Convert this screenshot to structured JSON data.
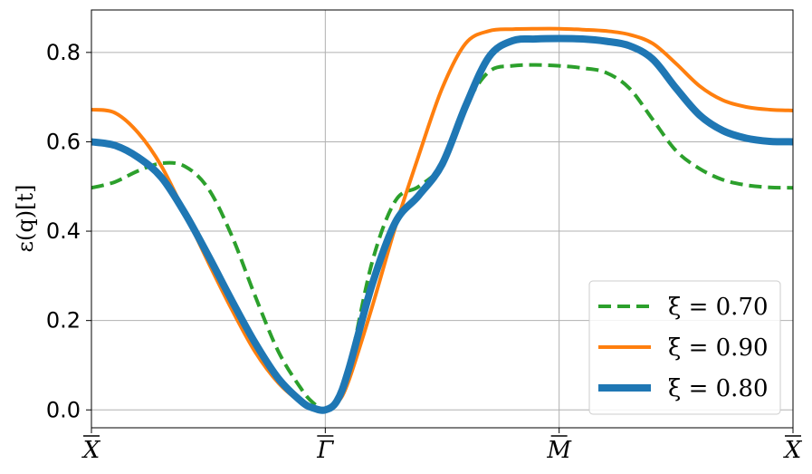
{
  "chart_data": {
    "type": "line",
    "ylabel": "ε(q)[t]",
    "ylim": [
      -0.04,
      0.895
    ],
    "yticks": [
      0.0,
      0.2,
      0.4,
      0.6,
      0.8
    ],
    "ytick_labels": [
      "0.0",
      "0.2",
      "0.4",
      "0.6",
      "0.8"
    ],
    "xlim": [
      0,
      3
    ],
    "xticks": [
      0,
      1,
      2,
      3
    ],
    "xtick_labels": [
      "X",
      "Γ",
      "M",
      "X"
    ],
    "grid": true,
    "legend_position": "lower-right",
    "series": [
      {
        "name": "ξ = 0.70",
        "color": "#2ca02c",
        "style": "dashed",
        "x": [
          0,
          0.1,
          0.2,
          0.3,
          0.4,
          0.5,
          0.6,
          0.7,
          0.8,
          0.9,
          0.95,
          1.0,
          1.05,
          1.1,
          1.2,
          1.3,
          1.4,
          1.5,
          1.6,
          1.7,
          1.8,
          1.9,
          2.0,
          2.1,
          2.2,
          2.3,
          2.4,
          2.5,
          2.6,
          2.7,
          2.8,
          2.9,
          3.0
        ],
        "y": [
          0.497,
          0.51,
          0.535,
          0.552,
          0.545,
          0.495,
          0.39,
          0.255,
          0.13,
          0.045,
          0.015,
          0.0,
          0.015,
          0.09,
          0.33,
          0.468,
          0.5,
          0.55,
          0.68,
          0.757,
          0.77,
          0.772,
          0.77,
          0.765,
          0.755,
          0.72,
          0.65,
          0.58,
          0.54,
          0.515,
          0.503,
          0.498,
          0.497
        ]
      },
      {
        "name": "ξ = 0.90",
        "color": "#ff7f0e",
        "style": "solid",
        "x": [
          0,
          0.1,
          0.2,
          0.3,
          0.4,
          0.5,
          0.6,
          0.7,
          0.8,
          0.9,
          0.95,
          1.0,
          1.05,
          1.1,
          1.2,
          1.3,
          1.4,
          1.5,
          1.6,
          1.7,
          1.8,
          1.9,
          2.0,
          2.1,
          2.2,
          2.3,
          2.4,
          2.5,
          2.6,
          2.7,
          2.8,
          2.9,
          3.0
        ],
        "y": [
          0.672,
          0.665,
          0.62,
          0.545,
          0.44,
          0.33,
          0.225,
          0.13,
          0.06,
          0.015,
          0.003,
          0.0,
          0.015,
          0.065,
          0.23,
          0.41,
          0.57,
          0.72,
          0.82,
          0.848,
          0.852,
          0.853,
          0.853,
          0.851,
          0.848,
          0.84,
          0.82,
          0.775,
          0.725,
          0.693,
          0.678,
          0.672,
          0.67
        ]
      },
      {
        "name": "ξ = 0.80",
        "color": "#1f77b4",
        "style": "solid-thick",
        "x": [
          0,
          0.1,
          0.2,
          0.3,
          0.4,
          0.5,
          0.6,
          0.7,
          0.8,
          0.9,
          0.95,
          1.0,
          1.05,
          1.1,
          1.2,
          1.3,
          1.4,
          1.5,
          1.6,
          1.7,
          1.8,
          1.9,
          2.0,
          2.1,
          2.2,
          2.3,
          2.4,
          2.5,
          2.6,
          2.7,
          2.8,
          2.9,
          3.0
        ],
        "y": [
          0.6,
          0.592,
          0.565,
          0.52,
          0.44,
          0.345,
          0.245,
          0.15,
          0.07,
          0.018,
          0.004,
          0.0,
          0.02,
          0.09,
          0.28,
          0.42,
          0.48,
          0.55,
          0.68,
          0.79,
          0.826,
          0.83,
          0.831,
          0.83,
          0.825,
          0.815,
          0.785,
          0.72,
          0.66,
          0.625,
          0.608,
          0.601,
          0.6
        ]
      }
    ]
  }
}
